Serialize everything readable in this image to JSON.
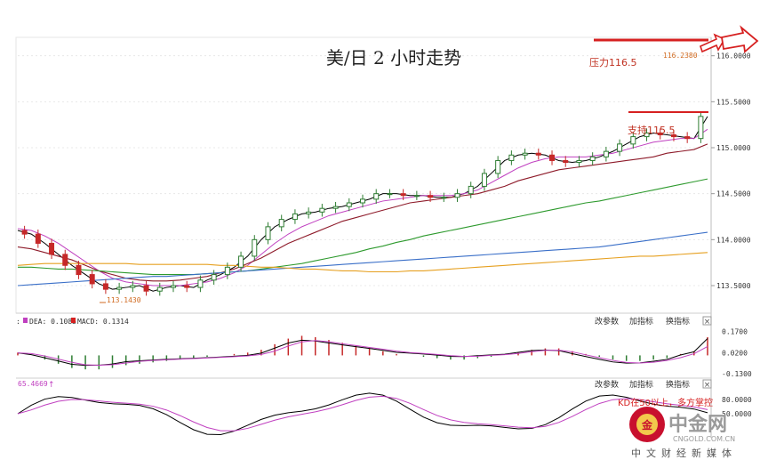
{
  "title": "美/日 2 小时走势",
  "annotations": {
    "resistance": "压力116.5",
    "support": "支持115.5",
    "high_label": "116.2380",
    "low_label": "113.1430",
    "kd_note": "KD在50以上，多方掌控"
  },
  "macd_header": {
    "dea": "DEA: 0.1085",
    "macd": "MACD: 0.1314",
    "dea_prefix": ":"
  },
  "kd_header": {
    "value": "65.4669"
  },
  "panel_buttons": [
    "改参数",
    "加指标",
    "换指标"
  ],
  "close_glyph": "×",
  "price_ticks": [
    "116.0000",
    "115.5000",
    "115.0000",
    "114.5000",
    "114.0000",
    "113.5000"
  ],
  "macd_ticks": [
    "0.1700",
    "0.0200",
    "-0.1300"
  ],
  "kd_ticks": [
    "80.0000",
    "50.0000"
  ],
  "watermark": {
    "brand": "中金网",
    "domain": "CNGOLD.COM.CN",
    "tagline": "中文财经新媒体",
    "logo_text": "金"
  },
  "colors": {
    "up": "#2e7d32",
    "down": "#c62828",
    "ma5": "#000000",
    "ma10": "#c040c0",
    "ma20": "#8e1b2a",
    "ma60": "#2e9a2e",
    "ma120": "#3a6fc8",
    "ma250": "#e6a020",
    "macd_dif": "#000000",
    "macd_dea": "#c040c0",
    "resistance_line": "#d62020",
    "brand_red": "#c8102e"
  },
  "chart_data": {
    "type": "line",
    "title": "美/日 2 小时走势",
    "ylim": [
      113.2,
      116.2
    ],
    "yticks": [
      116.0,
      115.5,
      115.0,
      114.5,
      114.0,
      113.5
    ],
    "resistance": 116.5,
    "support": 115.5,
    "series": [
      {
        "values": [
          114.1,
          114.06,
          113.96,
          113.84,
          113.72,
          113.62,
          113.52,
          113.46,
          113.48,
          113.5,
          113.44,
          113.48,
          113.5,
          113.48,
          113.56,
          113.62,
          113.7,
          113.82,
          114.0,
          114.14,
          114.22,
          114.28,
          114.3,
          114.34,
          114.36,
          114.4,
          114.44,
          114.5,
          114.5,
          114.48,
          114.48,
          114.46,
          114.46,
          114.5,
          114.58,
          114.72,
          114.86,
          114.92,
          114.94,
          114.92,
          114.86,
          114.84,
          114.86,
          114.9,
          114.96,
          115.04,
          115.12,
          115.16,
          115.14,
          115.12,
          115.1,
          115.34
        ]
      },
      {
        "values": [
          114.12,
          114.1,
          114.04,
          113.96,
          113.86,
          113.76,
          113.66,
          113.58,
          113.54,
          113.52,
          113.5,
          113.5,
          113.5,
          113.52,
          113.54,
          113.58,
          113.64,
          113.72,
          113.84,
          113.96,
          114.06,
          114.14,
          114.2,
          114.26,
          114.3,
          114.34,
          114.38,
          114.42,
          114.44,
          114.46,
          114.48,
          114.48,
          114.48,
          114.5,
          114.54,
          114.62,
          114.7,
          114.78,
          114.84,
          114.88,
          114.9,
          114.9,
          114.9,
          114.92,
          114.94,
          114.98,
          115.02,
          115.06,
          115.08,
          115.1,
          115.1,
          115.2
        ]
      },
      {
        "values": [
          113.92,
          113.9,
          113.86,
          113.82,
          113.78,
          113.72,
          113.66,
          113.62,
          113.58,
          113.56,
          113.55,
          113.55,
          113.56,
          113.58,
          113.6,
          113.64,
          113.68,
          113.74,
          113.8,
          113.88,
          113.96,
          114.02,
          114.08,
          114.14,
          114.2,
          114.24,
          114.28,
          114.32,
          114.36,
          114.4,
          114.42,
          114.44,
          114.46,
          114.48,
          114.5,
          114.54,
          114.58,
          114.64,
          114.68,
          114.72,
          114.76,
          114.78,
          114.8,
          114.82,
          114.84,
          114.86,
          114.88,
          114.9,
          114.94,
          114.96,
          114.98,
          115.04
        ]
      },
      {
        "values": [
          113.7,
          113.7,
          113.69,
          113.68,
          113.68,
          113.67,
          113.66,
          113.65,
          113.64,
          113.63,
          113.62,
          113.62,
          113.62,
          113.62,
          113.63,
          113.64,
          113.65,
          113.66,
          113.68,
          113.7,
          113.72,
          113.74,
          113.77,
          113.8,
          113.83,
          113.86,
          113.9,
          113.93,
          113.97,
          114.0,
          114.04,
          114.07,
          114.1,
          114.13,
          114.16,
          114.19,
          114.22,
          114.25,
          114.28,
          114.31,
          114.34,
          114.37,
          114.4,
          114.42,
          114.45,
          114.48,
          114.51,
          114.54,
          114.57,
          114.6,
          114.63,
          114.66
        ]
      },
      {
        "values": [
          113.5,
          113.51,
          113.52,
          113.53,
          113.54,
          113.55,
          113.56,
          113.57,
          113.58,
          113.59,
          113.6,
          113.6,
          113.61,
          113.62,
          113.63,
          113.64,
          113.65,
          113.66,
          113.67,
          113.68,
          113.69,
          113.7,
          113.71,
          113.72,
          113.73,
          113.74,
          113.75,
          113.76,
          113.77,
          113.78,
          113.79,
          113.8,
          113.81,
          113.82,
          113.83,
          113.84,
          113.85,
          113.86,
          113.87,
          113.88,
          113.89,
          113.9,
          113.91,
          113.92,
          113.94,
          113.96,
          113.98,
          114.0,
          114.02,
          114.04,
          114.06,
          114.08
        ]
      },
      {
        "values": [
          113.72,
          113.73,
          113.74,
          113.74,
          113.74,
          113.74,
          113.74,
          113.74,
          113.74,
          113.73,
          113.73,
          113.73,
          113.73,
          113.73,
          113.73,
          113.72,
          113.72,
          113.71,
          113.7,
          113.7,
          113.69,
          113.68,
          113.68,
          113.67,
          113.66,
          113.66,
          113.65,
          113.65,
          113.65,
          113.66,
          113.66,
          113.67,
          113.68,
          113.69,
          113.7,
          113.71,
          113.72,
          113.73,
          113.74,
          113.75,
          113.76,
          113.77,
          113.78,
          113.79,
          113.8,
          113.81,
          113.82,
          113.82,
          113.83,
          113.84,
          113.85,
          113.86
        ]
      }
    ],
    "macd": {
      "ylim": [
        -0.15,
        0.2
      ],
      "yticks": [
        0.17,
        0.02,
        -0.13
      ],
      "dea": 0.1085,
      "macd": 0.1314,
      "histogram": [
        0.02,
        0.0,
        -0.03,
        -0.06,
        -0.09,
        -0.1,
        -0.1,
        -0.09,
        -0.07,
        -0.06,
        -0.05,
        -0.04,
        -0.03,
        -0.02,
        -0.01,
        0.0,
        0.01,
        0.02,
        0.04,
        0.08,
        0.12,
        0.14,
        0.13,
        0.11,
        0.09,
        0.07,
        0.05,
        0.03,
        0.01,
        0.0,
        -0.01,
        -0.02,
        -0.03,
        -0.03,
        -0.02,
        -0.01,
        0.0,
        0.02,
        0.04,
        0.05,
        0.05,
        0.03,
        0.01,
        -0.01,
        -0.03,
        -0.04,
        -0.04,
        -0.03,
        -0.02,
        0.01,
        0.03,
        0.13
      ]
    },
    "kd": {
      "ylim": [
        0,
        100
      ],
      "yticks": [
        80,
        50
      ],
      "value": 65.4669
    }
  }
}
